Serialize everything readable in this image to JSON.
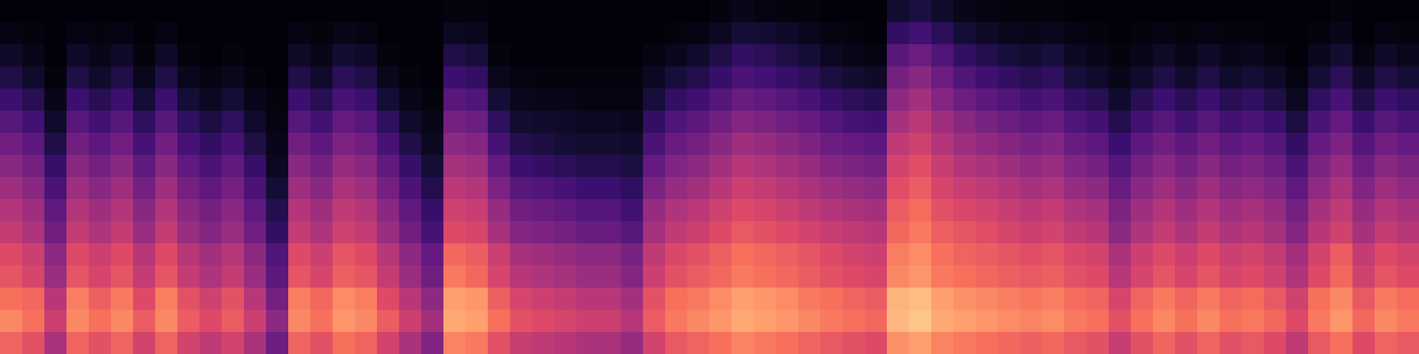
{
  "chart_data": {
    "type": "heatmap",
    "tick_labels": false,
    "zlim": [
      0,
      100
    ],
    "cells": [
      [
        67,
        62,
        47,
        67,
        62,
        67,
        57,
        67,
        57,
        52,
        57,
        47,
        32,
        67,
        62,
        70,
        67,
        57,
        47,
        37,
        74,
        72,
        62,
        54,
        52,
        50,
        47,
        47,
        42,
        57,
        64,
        67,
        70,
        74,
        72,
        70,
        67,
        64,
        62,
        60,
        77,
        80,
        74,
        72,
        70,
        68,
        66,
        68,
        64,
        62,
        54,
        62,
        67,
        62,
        67,
        62,
        64,
        60,
        52,
        64,
        70,
        60,
        67,
        64
      ],
      [
        75,
        70,
        55,
        75,
        70,
        75,
        65,
        75,
        65,
        60,
        65,
        55,
        40,
        75,
        70,
        78,
        75,
        65,
        55,
        45,
        82,
        80,
        70,
        62,
        60,
        58,
        55,
        55,
        50,
        65,
        72,
        75,
        78,
        82,
        80,
        78,
        75,
        72,
        70,
        68,
        85,
        88,
        82,
        80,
        78,
        76,
        74,
        76,
        72,
        70,
        62,
        70,
        75,
        70,
        75,
        70,
        72,
        68,
        60,
        72,
        78,
        68,
        75,
        72
      ],
      [
        70,
        68,
        50,
        73,
        66,
        72,
        60,
        73,
        62,
        56,
        62,
        50,
        34,
        73,
        68,
        76,
        73,
        60,
        50,
        40,
        80,
        78,
        66,
        58,
        55,
        53,
        50,
        50,
        45,
        62,
        70,
        72,
        76,
        80,
        78,
        76,
        72,
        70,
        67,
        65,
        84,
        86,
        80,
        77,
        75,
        73,
        71,
        73,
        69,
        67,
        58,
        67,
        72,
        67,
        72,
        67,
        69,
        64,
        56,
        70,
        75,
        64,
        72,
        69
      ],
      [
        63,
        58,
        43,
        63,
        58,
        63,
        53,
        63,
        53,
        48,
        53,
        43,
        28,
        63,
        58,
        66,
        63,
        53,
        43,
        33,
        72,
        68,
        58,
        50,
        48,
        46,
        43,
        43,
        38,
        55,
        62,
        65,
        68,
        72,
        70,
        68,
        65,
        62,
        60,
        58,
        75,
        78,
        72,
        70,
        68,
        66,
        64,
        66,
        62,
        60,
        50,
        58,
        63,
        58,
        63,
        58,
        60,
        56,
        48,
        60,
        68,
        56,
        63,
        60
      ],
      [
        60,
        55,
        40,
        60,
        55,
        60,
        50,
        60,
        50,
        45,
        50,
        40,
        25,
        60,
        55,
        63,
        60,
        50,
        40,
        30,
        68,
        65,
        55,
        46,
        44,
        42,
        40,
        40,
        35,
        52,
        59,
        62,
        66,
        70,
        68,
        66,
        63,
        60,
        57,
        55,
        73,
        76,
        70,
        67,
        65,
        63,
        61,
        63,
        59,
        57,
        47,
        55,
        60,
        55,
        60,
        55,
        57,
        53,
        45,
        57,
        65,
        53,
        60,
        57
      ],
      [
        53,
        48,
        33,
        53,
        48,
        53,
        43,
        53,
        43,
        38,
        43,
        33,
        18,
        53,
        48,
        56,
        53,
        43,
        33,
        23,
        60,
        58,
        46,
        38,
        36,
        34,
        31,
        31,
        27,
        46,
        52,
        55,
        60,
        64,
        62,
        60,
        57,
        54,
        52,
        50,
        68,
        72,
        66,
        63,
        61,
        58,
        55,
        57,
        52,
        50,
        40,
        48,
        53,
        48,
        53,
        48,
        50,
        46,
        38,
        50,
        56,
        46,
        53,
        50
      ],
      [
        49,
        44,
        29,
        49,
        44,
        49,
        39,
        49,
        39,
        34,
        39,
        29,
        14,
        49,
        44,
        52,
        49,
        39,
        29,
        19,
        56,
        54,
        42,
        33,
        31,
        29,
        26,
        26,
        22,
        42,
        48,
        51,
        56,
        60,
        58,
        55,
        52,
        49,
        47,
        45,
        65,
        69,
        62,
        59,
        57,
        54,
        51,
        53,
        48,
        46,
        36,
        44,
        49,
        44,
        49,
        44,
        46,
        42,
        34,
        46,
        52,
        42,
        49,
        46
      ],
      [
        44,
        39,
        24,
        44,
        39,
        44,
        34,
        44,
        34,
        29,
        34,
        24,
        10,
        44,
        39,
        47,
        44,
        34,
        24,
        14,
        51,
        49,
        36,
        27,
        25,
        23,
        20,
        20,
        17,
        36,
        42,
        45,
        50,
        55,
        53,
        50,
        47,
        44,
        42,
        40,
        61,
        65,
        58,
        54,
        52,
        49,
        46,
        48,
        42,
        40,
        31,
        39,
        44,
        39,
        44,
        39,
        41,
        37,
        29,
        41,
        47,
        37,
        44,
        41
      ],
      [
        39,
        34,
        19,
        39,
        34,
        39,
        29,
        39,
        29,
        24,
        29,
        19,
        6,
        39,
        34,
        42,
        39,
        29,
        19,
        10,
        46,
        44,
        30,
        20,
        18,
        16,
        14,
        14,
        12,
        30,
        37,
        40,
        45,
        50,
        48,
        45,
        42,
        38,
        36,
        34,
        57,
        61,
        54,
        49,
        47,
        44,
        41,
        43,
        37,
        34,
        26,
        34,
        39,
        34,
        39,
        34,
        36,
        32,
        24,
        36,
        42,
        32,
        39,
        36
      ],
      [
        33,
        28,
        13,
        33,
        28,
        33,
        23,
        33,
        23,
        18,
        23,
        13,
        4,
        33,
        28,
        36,
        33,
        23,
        13,
        6,
        40,
        38,
        23,
        14,
        12,
        10,
        9,
        9,
        8,
        24,
        31,
        34,
        39,
        44,
        42,
        39,
        36,
        32,
        30,
        28,
        52,
        56,
        49,
        44,
        41,
        38,
        35,
        37,
        31,
        28,
        20,
        28,
        33,
        28,
        33,
        28,
        30,
        26,
        18,
        30,
        36,
        26,
        33,
        30
      ],
      [
        27,
        22,
        8,
        27,
        22,
        27,
        17,
        27,
        17,
        12,
        17,
        8,
        3,
        27,
        22,
        30,
        27,
        17,
        8,
        4,
        34,
        32,
        17,
        9,
        8,
        7,
        6,
        6,
        5,
        18,
        25,
        28,
        33,
        38,
        36,
        33,
        30,
        26,
        23,
        21,
        46,
        51,
        44,
        39,
        35,
        32,
        29,
        31,
        25,
        22,
        14,
        22,
        27,
        22,
        27,
        22,
        24,
        20,
        12,
        24,
        30,
        20,
        27,
        24
      ],
      [
        20,
        15,
        4,
        20,
        15,
        20,
        10,
        20,
        10,
        6,
        10,
        4,
        2,
        20,
        15,
        23,
        20,
        10,
        4,
        2,
        27,
        25,
        10,
        5,
        4,
        4,
        3,
        3,
        3,
        11,
        18,
        21,
        26,
        31,
        29,
        26,
        23,
        19,
        16,
        14,
        40,
        45,
        38,
        32,
        28,
        25,
        22,
        24,
        18,
        15,
        8,
        15,
        20,
        15,
        20,
        15,
        17,
        13,
        6,
        17,
        23,
        13,
        20,
        17
      ],
      [
        13,
        8,
        2,
        13,
        8,
        13,
        5,
        13,
        5,
        3,
        5,
        2,
        1,
        13,
        8,
        16,
        13,
        5,
        2,
        1,
        20,
        18,
        5,
        3,
        2,
        2,
        2,
        2,
        2,
        6,
        11,
        14,
        19,
        24,
        22,
        19,
        16,
        12,
        9,
        7,
        34,
        39,
        32,
        25,
        21,
        18,
        15,
        17,
        11,
        8,
        4,
        8,
        13,
        8,
        13,
        8,
        10,
        7,
        3,
        10,
        16,
        7,
        13,
        10
      ],
      [
        7,
        4,
        1,
        7,
        4,
        7,
        2,
        7,
        2,
        1,
        2,
        1,
        1,
        7,
        4,
        9,
        7,
        2,
        1,
        1,
        13,
        11,
        2,
        1,
        1,
        1,
        1,
        1,
        1,
        3,
        5,
        8,
        13,
        18,
        16,
        13,
        10,
        6,
        4,
        3,
        27,
        32,
        25,
        18,
        14,
        11,
        9,
        11,
        6,
        4,
        2,
        4,
        7,
        4,
        7,
        4,
        5,
        3,
        1,
        5,
        9,
        3,
        7,
        5
      ],
      [
        3,
        2,
        1,
        3,
        2,
        3,
        1,
        3,
        1,
        1,
        1,
        1,
        1,
        3,
        2,
        4,
        3,
        1,
        1,
        1,
        6,
        5,
        1,
        1,
        1,
        1,
        1,
        1,
        1,
        1,
        2,
        3,
        6,
        10,
        9,
        7,
        5,
        3,
        2,
        1,
        18,
        22,
        16,
        10,
        7,
        5,
        4,
        5,
        3,
        2,
        1,
        2,
        3,
        2,
        3,
        2,
        2,
        1,
        1,
        2,
        4,
        1,
        3,
        2
      ],
      [
        1,
        1,
        1,
        1,
        1,
        1,
        1,
        1,
        1,
        1,
        1,
        1,
        1,
        1,
        1,
        1,
        1,
        1,
        1,
        1,
        2,
        2,
        1,
        1,
        1,
        1,
        1,
        1,
        1,
        1,
        1,
        1,
        2,
        4,
        3,
        2,
        2,
        1,
        1,
        1,
        9,
        12,
        8,
        4,
        3,
        2,
        2,
        2,
        1,
        1,
        1,
        1,
        1,
        1,
        1,
        1,
        1,
        1,
        1,
        1,
        2,
        1,
        1,
        1
      ]
    ]
  }
}
